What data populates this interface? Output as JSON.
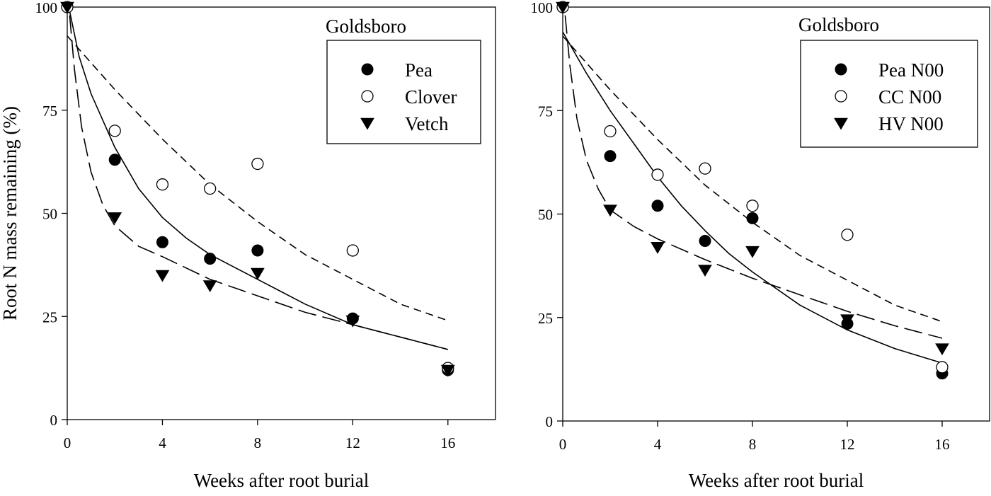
{
  "chart_data": [
    {
      "type": "scatter",
      "panel": "left",
      "site_label": "Goldsboro",
      "xlabel": "Weeks after root burial",
      "ylabel": "Root N mass remaining (%)",
      "xlim": [
        0,
        18
      ],
      "ylim": [
        0,
        100
      ],
      "xticks": [
        0,
        4,
        8,
        12,
        16
      ],
      "yticks": [
        0,
        25,
        50,
        75,
        100
      ],
      "xtick_labels": [
        "0",
        "4",
        "8",
        "12",
        "16"
      ],
      "ytick_labels": [
        "0",
        "25",
        "50",
        "75",
        "100"
      ],
      "legend_position": "top-right",
      "series": [
        {
          "name": "Pea",
          "marker": "filled-circle",
          "x": [
            0,
            2,
            4,
            6,
            8,
            12,
            16
          ],
          "y": [
            100,
            63,
            43,
            39,
            41,
            24.5,
            12
          ],
          "fit": {
            "style": "solid",
            "x": [
              0.1,
              0.5,
              1,
              2,
              3,
              4,
              5,
              6,
              7,
              8,
              10,
              12,
              14,
              16
            ],
            "y": [
              99,
              88,
              79,
              66,
              56,
              49,
              44,
              40,
              37,
              34,
              28,
              23,
              20,
              17
            ]
          }
        },
        {
          "name": "Clover",
          "marker": "open-circle",
          "x": [
            0,
            2,
            4,
            6,
            8,
            12,
            16
          ],
          "y": [
            100,
            70,
            57,
            56,
            62,
            41,
            12.5
          ],
          "fit": {
            "style": "short-dash",
            "x": [
              0,
              2,
              4,
              6,
              8,
              10,
              12,
              14,
              16
            ],
            "y": [
              93,
              80,
              68,
              57,
              48,
              40,
              34,
              28,
              24
            ]
          }
        },
        {
          "name": "Vetch",
          "marker": "filled-triangle-down",
          "x": [
            0,
            2,
            4,
            6,
            8,
            12,
            16
          ],
          "y": [
            100,
            49,
            35,
            32.5,
            35.5,
            24,
            12
          ],
          "fit": {
            "style": "long-dash",
            "x": [
              0.1,
              0.3,
              0.6,
              1,
              1.5,
              2,
              3,
              4,
              6,
              8,
              10,
              12,
              14,
              16
            ],
            "y": [
              98,
              85,
              71,
              60,
              52,
              47,
              42,
              39.5,
              34,
              30,
              26,
              23,
              20,
              17
            ]
          }
        }
      ]
    },
    {
      "type": "scatter",
      "panel": "right",
      "site_label": "Goldsboro",
      "xlabel": "Weeks after root burial",
      "ylabel": "",
      "xlim": [
        0,
        18
      ],
      "ylim": [
        0,
        100
      ],
      "xticks": [
        0,
        4,
        8,
        12,
        16
      ],
      "yticks": [
        0,
        25,
        50,
        75,
        100
      ],
      "xtick_labels": [
        "0",
        "4",
        "8",
        "12",
        "16"
      ],
      "ytick_labels": [
        "0",
        "25",
        "50",
        "75",
        "100"
      ],
      "legend_position": "top-right",
      "series": [
        {
          "name": "Pea N00",
          "marker": "filled-circle",
          "x": [
            0,
            2,
            4,
            6,
            8,
            12,
            16
          ],
          "y": [
            100,
            64,
            52,
            43.5,
            49,
            23.5,
            11.5
          ],
          "fit": {
            "style": "solid",
            "x": [
              0,
              0.5,
              1,
              2,
              3,
              4,
              5,
              6,
              7,
              8,
              10,
              12,
              14,
              16
            ],
            "y": [
              94,
              89,
              84,
              75,
              67,
              59,
              52,
              46,
              40.5,
              36,
              28,
              22,
              17.5,
              14
            ]
          }
        },
        {
          "name": "CC N00",
          "marker": "open-circle",
          "x": [
            0,
            2,
            4,
            6,
            8,
            12,
            16
          ],
          "y": [
            100,
            70,
            59.5,
            61,
            52,
            45,
            13
          ],
          "fit": {
            "style": "short-dash",
            "x": [
              0,
              2,
              4,
              6,
              8,
              10,
              12,
              14,
              16
            ],
            "y": [
              93,
              80,
              68,
              57,
              48,
              40,
              34,
              28,
              24
            ]
          }
        },
        {
          "name": "HV N00",
          "marker": "filled-triangle-down",
          "x": [
            0,
            2,
            4,
            6,
            8,
            12,
            16
          ],
          "y": [
            100,
            51,
            42,
            36.5,
            41,
            24.5,
            17.5
          ],
          "fit": {
            "style": "long-dash",
            "x": [
              0.1,
              0.3,
              0.6,
              1,
              1.5,
              2,
              3,
              4,
              6,
              8,
              10,
              12,
              14,
              16
            ],
            "y": [
              98,
              86,
              73,
              63,
              56,
              51,
              47,
              44,
              39,
              34.5,
              30.5,
              26.5,
              23,
              20
            ]
          }
        }
      ]
    }
  ]
}
